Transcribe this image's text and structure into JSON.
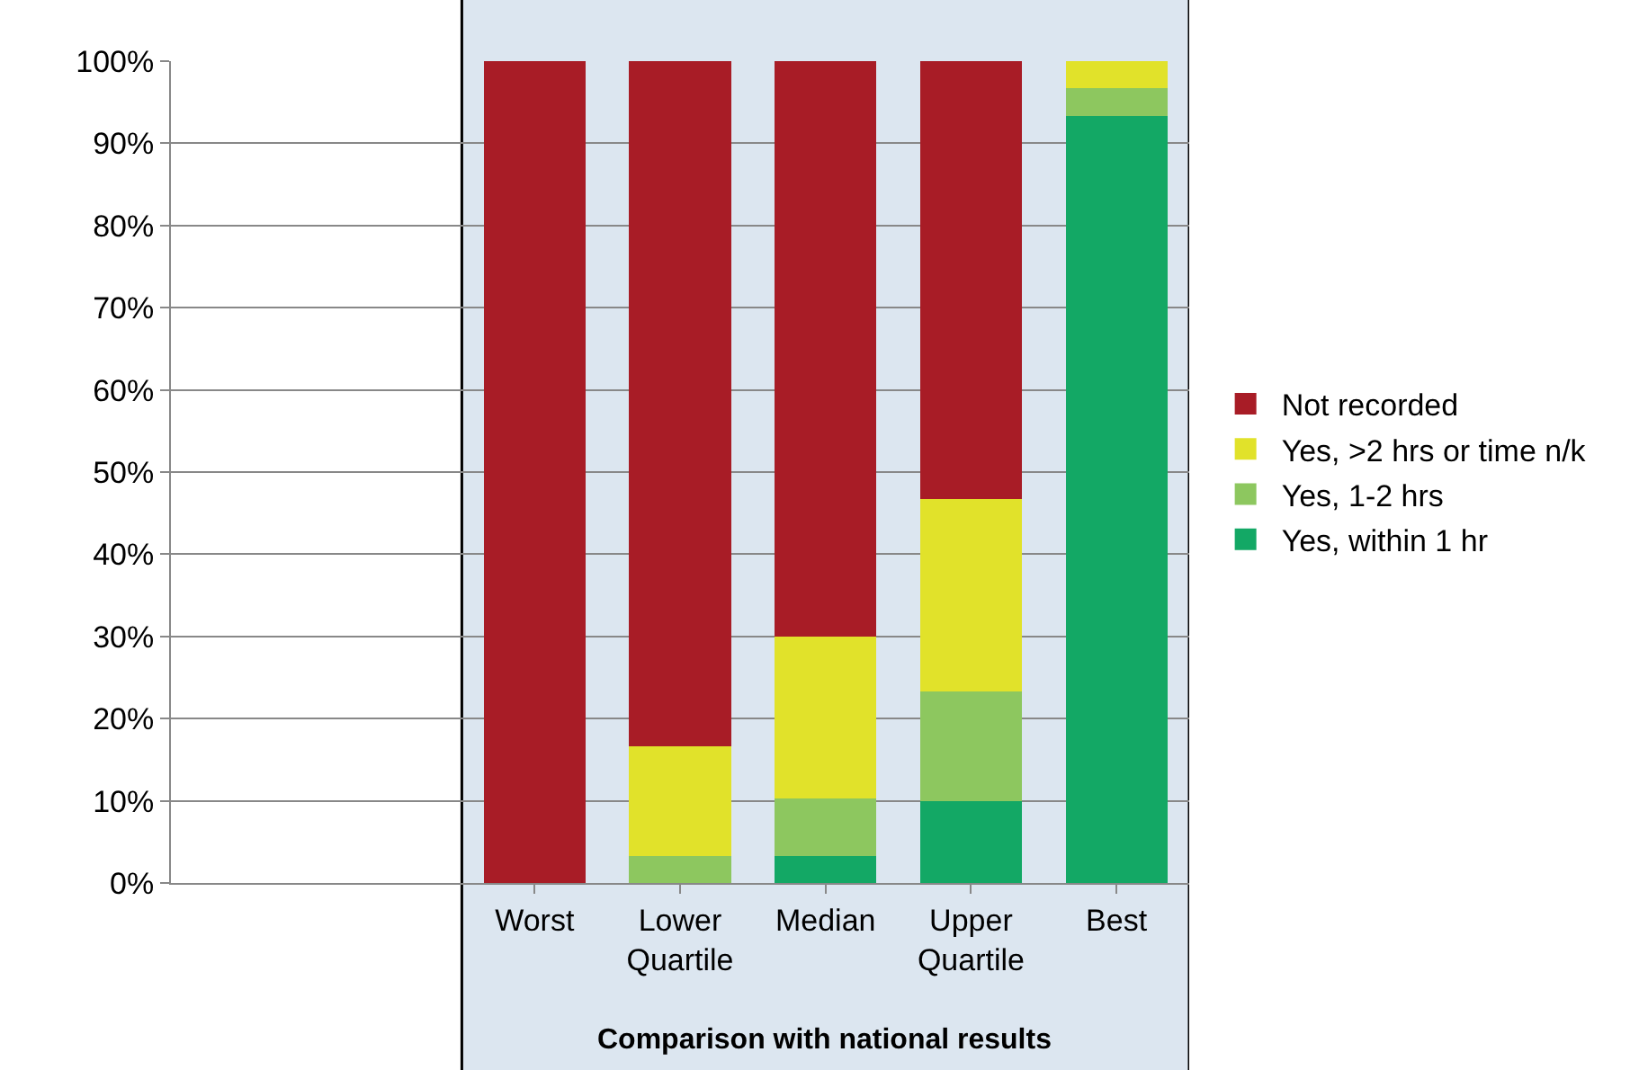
{
  "chart_data": {
    "type": "bar",
    "stacked": true,
    "xlabel": "Comparison with national results",
    "categories": [
      null,
      null,
      "Worst",
      "Lower Quartile",
      "Median",
      "Upper Quartile",
      "Best"
    ],
    "series": [
      {
        "name": "Yes, within 1 hr",
        "color": "#13a865",
        "values": [
          null,
          null,
          0,
          0,
          3.3,
          10,
          93.3
        ]
      },
      {
        "name": "Yes, 1-2 hrs",
        "color": "#8dc75f",
        "values": [
          null,
          null,
          0,
          3.3,
          7,
          13.3,
          3.4
        ]
      },
      {
        "name": "Yes, >2 hrs or time n/k",
        "color": "#e1e22a",
        "values": [
          null,
          null,
          0,
          13.3,
          19.7,
          23.4,
          3.3
        ]
      },
      {
        "name": "Not recorded",
        "color": "#a81c26",
        "values": [
          null,
          null,
          100,
          83.4,
          70,
          53.3,
          0
        ]
      }
    ],
    "ylim": [
      0,
      100
    ],
    "yticks": [
      {
        "value": 0,
        "label": "0%"
      },
      {
        "value": 10,
        "label": "10%"
      },
      {
        "value": 20,
        "label": "20%"
      },
      {
        "value": 30,
        "label": "30%"
      },
      {
        "value": 40,
        "label": "40%"
      },
      {
        "value": 50,
        "label": "50%"
      },
      {
        "value": 60,
        "label": "60%"
      },
      {
        "value": 70,
        "label": "70%"
      },
      {
        "value": 80,
        "label": "80%"
      },
      {
        "value": 90,
        "label": "90%"
      },
      {
        "value": 100,
        "label": "100%"
      }
    ],
    "bands": [
      {
        "axis": "x",
        "from": "Worst",
        "to": "Best",
        "color": "#dce6f0"
      }
    ],
    "grid": "y",
    "legend": "right"
  }
}
